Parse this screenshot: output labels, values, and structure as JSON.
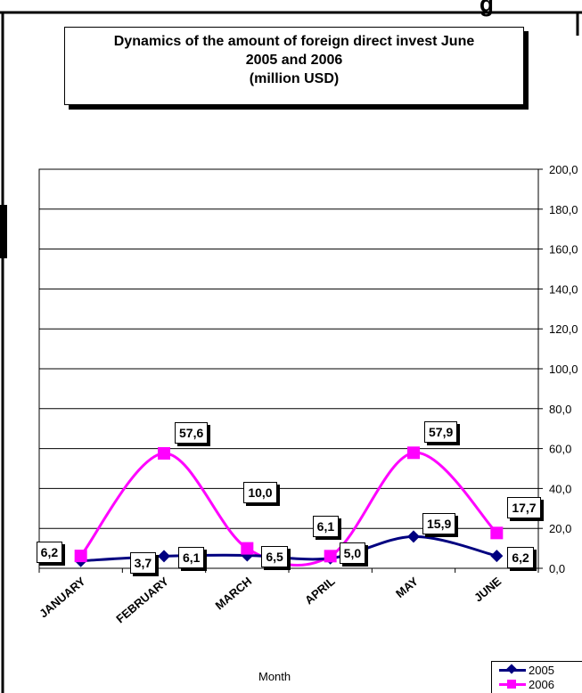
{
  "window_title_fragment": "g",
  "chart_data": {
    "type": "line",
    "title_lines": [
      "Dynamics of the amount of foreign direct invest June",
      "2005 and  2006",
      "(million USD)"
    ],
    "categories": [
      "JANUARY",
      "FEBRUARY",
      "MARCH",
      "APRIL",
      "MAY",
      "JUNE"
    ],
    "xlabel": "Month",
    "ylabel": "",
    "ylim": [
      0,
      200
    ],
    "yticks": [
      "0,0",
      "20,0",
      "40,0",
      "60,0",
      "80,0",
      "100,0",
      "120,0",
      "140,0",
      "160,0",
      "180,0",
      "200,0"
    ],
    "grid": true,
    "legend_position": "bottom-right",
    "series": [
      {
        "name": "2005",
        "color": "#000080",
        "marker": "diamond",
        "values": [
          3.7,
          6.1,
          6.5,
          5.0,
          15.9,
          6.2
        ],
        "labels": [
          "3,7",
          "6,1",
          "6,5",
          "5,0",
          "15,9",
          "6,2"
        ]
      },
      {
        "name": "2006",
        "color": "#ff00ff",
        "marker": "square",
        "values": [
          6.2,
          57.6,
          10.0,
          6.1,
          57.9,
          17.7
        ],
        "labels": [
          "6,2",
          "57,6",
          "10,0",
          "6,1",
          "57,9",
          "17,7"
        ]
      }
    ]
  }
}
